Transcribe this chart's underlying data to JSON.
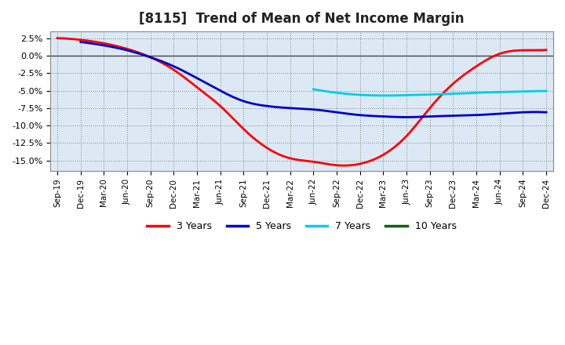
{
  "title": "[8115]  Trend of Mean of Net Income Margin",
  "x_labels": [
    "Sep-19",
    "Dec-19",
    "Mar-20",
    "Jun-20",
    "Sep-20",
    "Dec-20",
    "Mar-21",
    "Jun-21",
    "Sep-21",
    "Dec-21",
    "Mar-22",
    "Jun-22",
    "Sep-22",
    "Dec-22",
    "Mar-23",
    "Jun-23",
    "Sep-23",
    "Dec-23",
    "Mar-24",
    "Jun-24",
    "Sep-24",
    "Dec-24"
  ],
  "series": {
    "3 Years": {
      "color": "#ff0000",
      "values": [
        2.55,
        2.3,
        1.8,
        1.0,
        -0.2,
        -2.0,
        -4.5,
        -7.2,
        -10.5,
        -13.2,
        -14.7,
        -15.2,
        -15.7,
        -15.5,
        -14.2,
        -11.5,
        -7.5,
        -4.0,
        -1.5,
        0.3,
        0.8,
        0.85
      ]
    },
    "5 Years": {
      "color": "#0000cc",
      "values": [
        null,
        2.0,
        1.5,
        0.8,
        -0.2,
        -1.5,
        -3.2,
        -5.0,
        -6.5,
        -7.2,
        -7.5,
        -7.7,
        -8.1,
        -8.5,
        -8.7,
        -8.8,
        -8.7,
        -8.6,
        -8.5,
        -8.3,
        -8.1,
        -8.1
      ]
    },
    "7 Years": {
      "color": "#00ccee",
      "values": [
        null,
        null,
        null,
        null,
        null,
        null,
        null,
        null,
        null,
        null,
        null,
        -4.8,
        -5.3,
        -5.6,
        -5.7,
        -5.65,
        -5.55,
        -5.45,
        -5.3,
        -5.2,
        -5.1,
        -5.05
      ]
    },
    "10 Years": {
      "color": "#006400",
      "values": [
        null,
        null,
        null,
        null,
        null,
        null,
        null,
        null,
        null,
        null,
        null,
        null,
        null,
        null,
        null,
        null,
        null,
        null,
        null,
        null,
        null,
        null
      ]
    }
  },
  "ylim": [
    -16.5,
    3.5
  ],
  "yticks": [
    2.5,
    0.0,
    -2.5,
    -5.0,
    -7.5,
    -10.0,
    -12.5,
    -15.0
  ],
  "background_color": "#dce9f5",
  "plot_bg_color": "#dce9f5",
  "grid_color": "#888888",
  "title_fontsize": 12,
  "zero_line_color": "#444444"
}
